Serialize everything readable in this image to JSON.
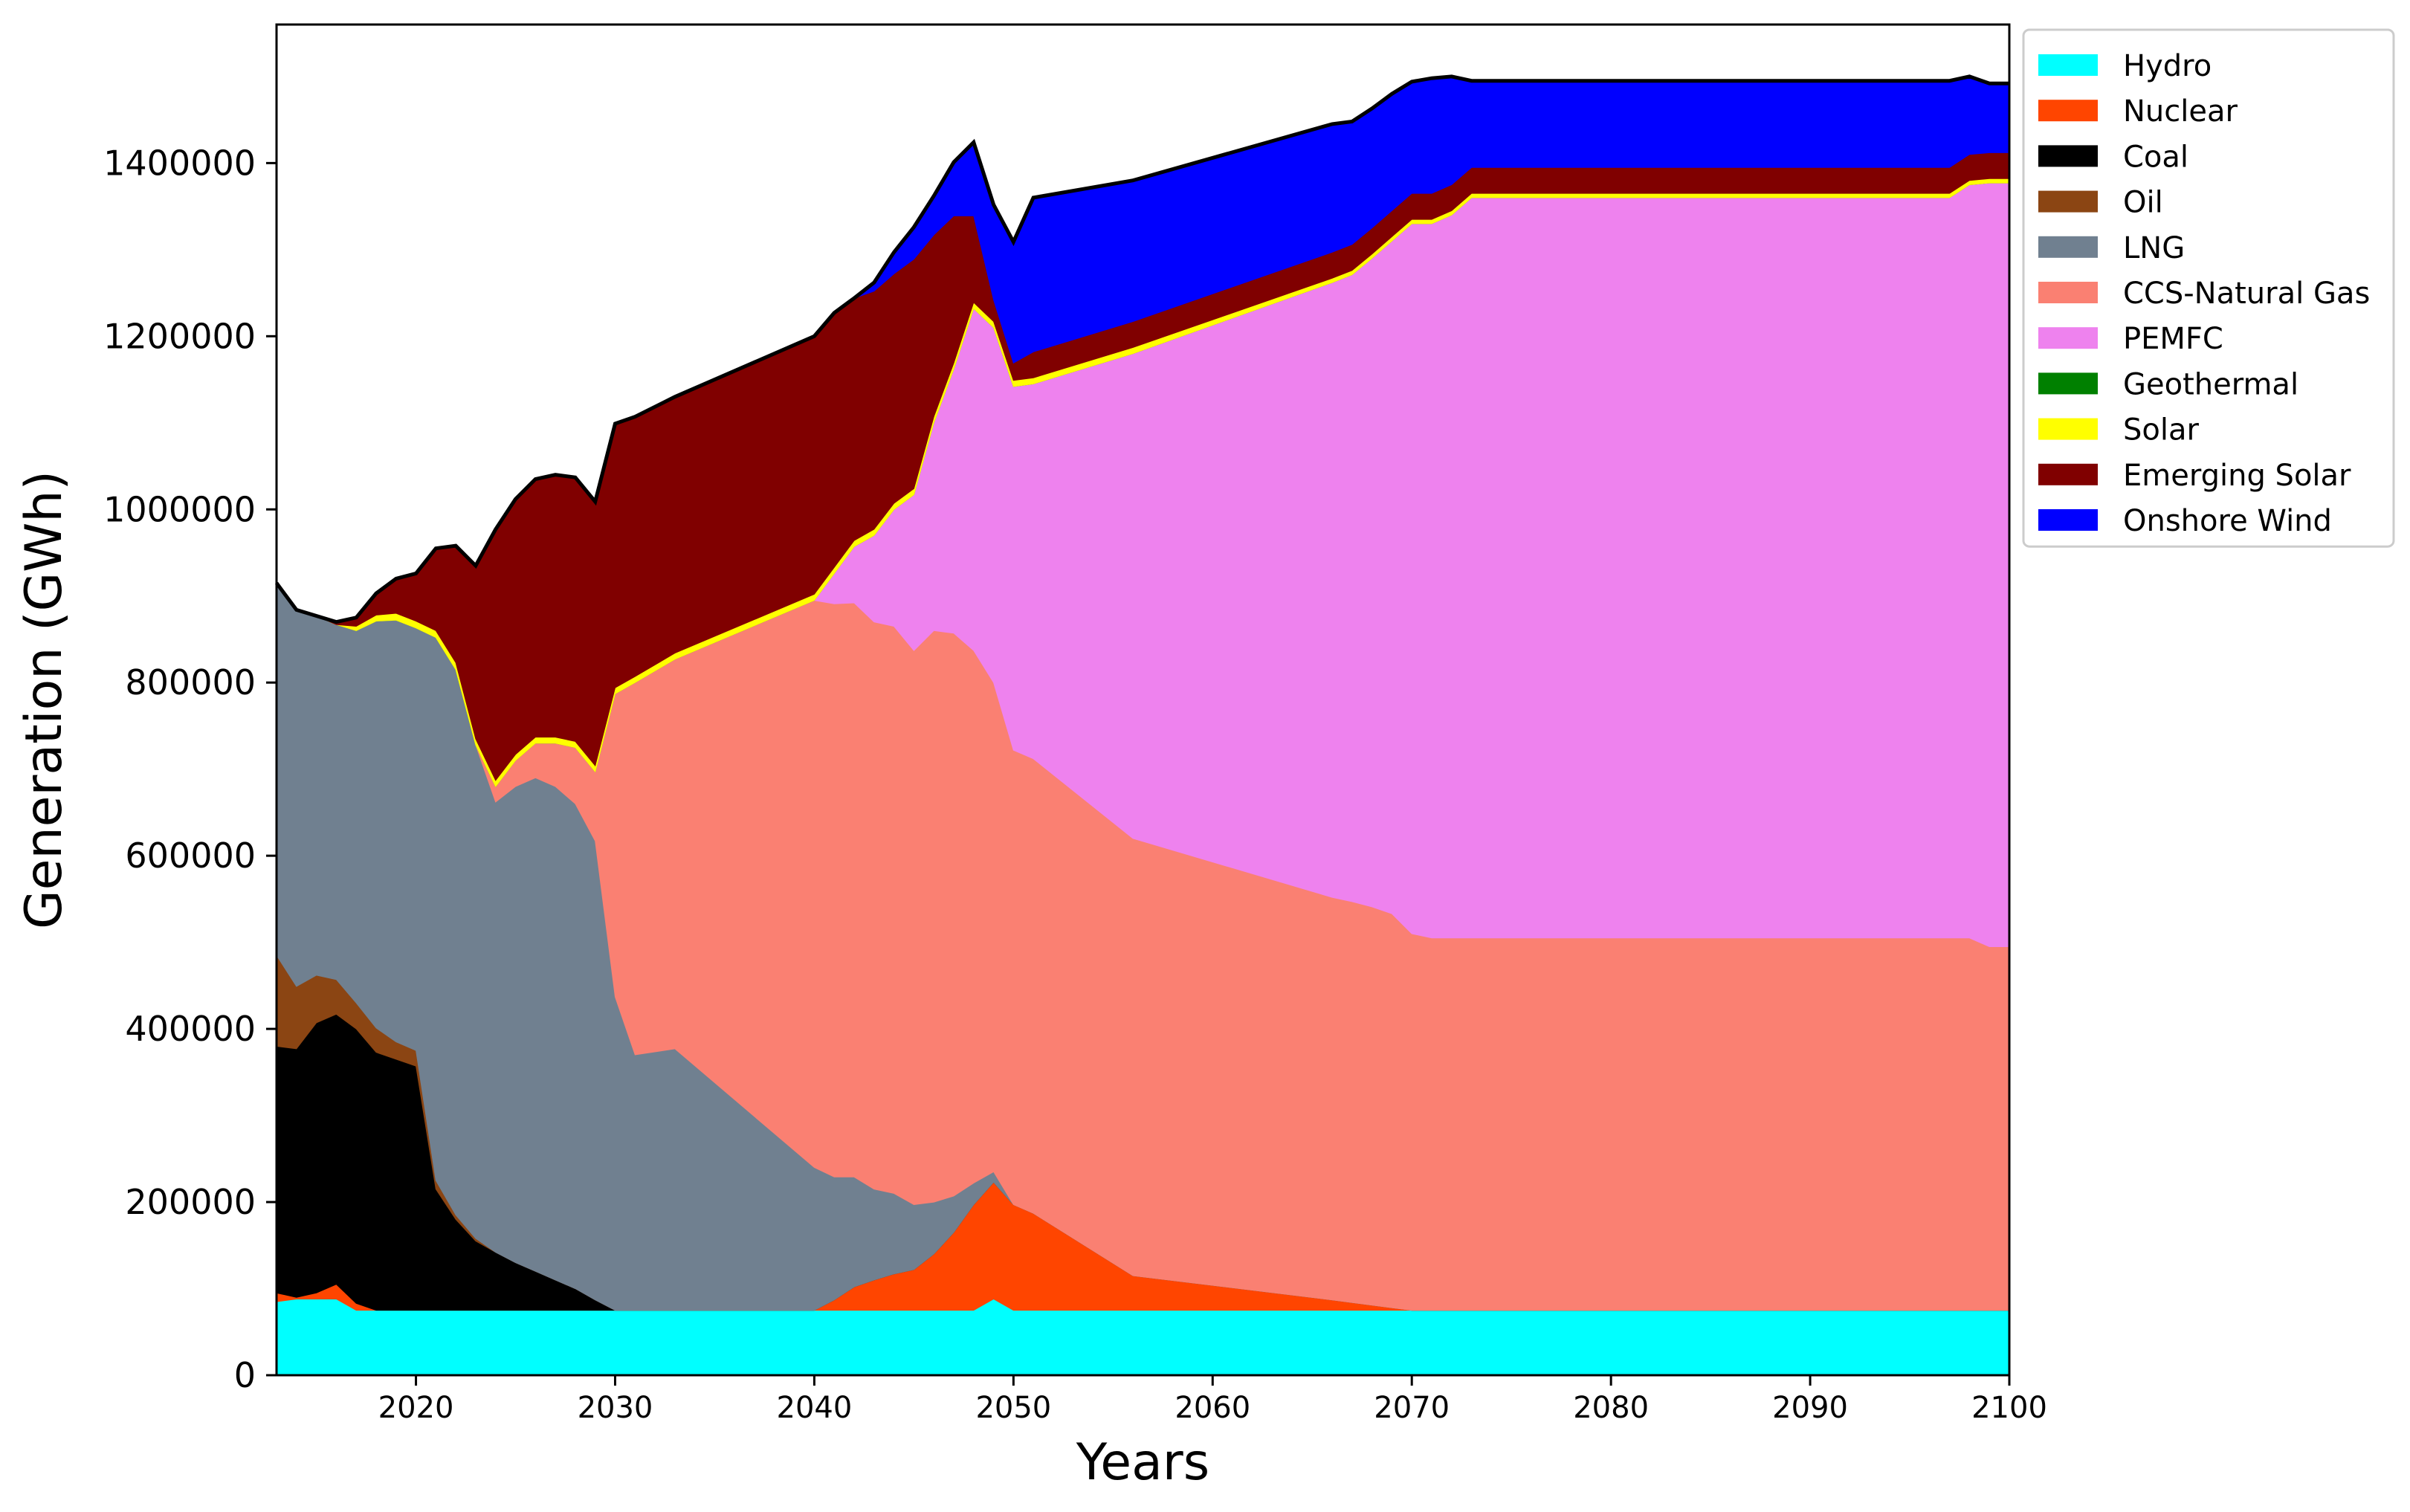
{
  "chart_data": {
    "type": "area",
    "stacked": true,
    "xlabel": "Years",
    "ylabel": "Generation (GWh)",
    "xlim": [
      2013,
      2100
    ],
    "ylim": [
      0,
      1560000
    ],
    "x_ticks": [
      2020,
      2030,
      2040,
      2050,
      2060,
      2070,
      2080,
      2090,
      2100
    ],
    "y_ticks": [
      0,
      200000,
      400000,
      600000,
      800000,
      1000000,
      1200000,
      1400000
    ],
    "grid": false,
    "legend_position": "outside-right-top",
    "x": [
      2013,
      2014,
      2015,
      2016,
      2017,
      2018,
      2019,
      2020,
      2021,
      2022,
      2023,
      2024,
      2025,
      2026,
      2027,
      2028,
      2029,
      2030,
      2031,
      2033,
      2040,
      2041,
      2042,
      2043,
      2044,
      2045,
      2046,
      2047,
      2048,
      2049,
      2050,
      2051,
      2056,
      2066,
      2067,
      2068,
      2069,
      2070,
      2071,
      2072,
      2073,
      2097,
      2098,
      2099,
      2100
    ],
    "series": [
      {
        "name": "Hydro",
        "color": "#00ffff",
        "values": [
          85000,
          88000,
          88000,
          88000,
          75000,
          75000,
          75000,
          75000,
          75000,
          75000,
          75000,
          75000,
          75000,
          75000,
          75000,
          75000,
          75000,
          75000,
          75000,
          75000,
          75000,
          75000,
          75000,
          75000,
          75000,
          75000,
          75000,
          75000,
          75000,
          88000,
          75000,
          75000,
          75000,
          75000,
          75000,
          75000,
          75000,
          75000,
          75000,
          75000,
          75000,
          75000,
          75000,
          75000,
          75000
        ]
      },
      {
        "name": "Nuclear",
        "color": "#ff4500",
        "values": [
          10000,
          2000,
          7000,
          17000,
          8000,
          0,
          0,
          0,
          0,
          0,
          0,
          0,
          0,
          0,
          0,
          0,
          0,
          0,
          0,
          0,
          0,
          12000,
          27000,
          35000,
          42000,
          47000,
          65000,
          90000,
          122000,
          135000,
          122000,
          112000,
          40000,
          12000,
          9000,
          6000,
          3000,
          0,
          0,
          0,
          0,
          0,
          0,
          0,
          0
        ]
      },
      {
        "name": "Coal",
        "color": "#000000",
        "values": [
          285000,
          287000,
          312000,
          312000,
          317000,
          298000,
          290000,
          282000,
          140000,
          105000,
          80000,
          67000,
          55000,
          45000,
          35000,
          25000,
          12000,
          0,
          0,
          0,
          0,
          0,
          0,
          0,
          0,
          0,
          0,
          0,
          0,
          0,
          0,
          0,
          0,
          0,
          0,
          0,
          0,
          0,
          0,
          0,
          0,
          0,
          0,
          0,
          0
        ]
      },
      {
        "name": "Oil",
        "color": "#8b4513",
        "values": [
          105000,
          72000,
          55000,
          40000,
          30000,
          28000,
          20000,
          18000,
          10000,
          5000,
          3000,
          0,
          0,
          0,
          0,
          0,
          0,
          0,
          0,
          0,
          0,
          0,
          0,
          0,
          0,
          0,
          0,
          0,
          0,
          0,
          0,
          0,
          0,
          0,
          0,
          0,
          0,
          0,
          0,
          0,
          0,
          0,
          0,
          0,
          0
        ]
      },
      {
        "name": "LNG",
        "color": "#708090",
        "values": [
          430000,
          435000,
          415000,
          410000,
          430000,
          470000,
          487000,
          488000,
          627000,
          630000,
          570000,
          520000,
          550000,
          570000,
          570000,
          560000,
          530000,
          362000,
          295000,
          302000,
          165000,
          142000,
          127000,
          105000,
          93000,
          75000,
          60000,
          42000,
          25000,
          12000,
          0,
          0,
          0,
          0,
          0,
          0,
          0,
          0,
          0,
          0,
          0,
          0,
          0,
          0,
          0
        ]
      },
      {
        "name": "CCS-Natural Gas",
        "color": "#fa8072",
        "values": [
          0,
          0,
          0,
          0,
          0,
          0,
          0,
          0,
          0,
          0,
          0,
          18000,
          30000,
          40000,
          50000,
          65000,
          80000,
          350000,
          430000,
          450000,
          655000,
          662000,
          663000,
          655000,
          655000,
          640000,
          660000,
          650000,
          615000,
          565000,
          525000,
          525000,
          505000,
          465000,
          463000,
          460000,
          455000,
          435000,
          430000,
          430000,
          430000,
          430000,
          430000,
          420000,
          420000
        ]
      },
      {
        "name": "PEMFC",
        "color": "#ee82ee",
        "values": [
          0,
          0,
          0,
          0,
          0,
          0,
          0,
          0,
          0,
          0,
          0,
          0,
          0,
          0,
          0,
          0,
          0,
          0,
          0,
          0,
          0,
          35000,
          65000,
          100000,
          135000,
          180000,
          240000,
          305000,
          395000,
          410000,
          420000,
          433000,
          560000,
          710000,
          724000,
          749000,
          777000,
          820000,
          825000,
          835000,
          855000,
          855000,
          870000,
          882000,
          882000
        ]
      },
      {
        "name": "Geothermal",
        "color": "#008000",
        "values": [
          0,
          0,
          0,
          0,
          0,
          0,
          0,
          0,
          0,
          0,
          0,
          0,
          0,
          0,
          0,
          0,
          0,
          0,
          0,
          0,
          0,
          0,
          0,
          0,
          0,
          0,
          0,
          0,
          0,
          0,
          0,
          0,
          0,
          0,
          0,
          0,
          0,
          0,
          0,
          0,
          0,
          0,
          0,
          0,
          0
        ]
      },
      {
        "name": "Solar",
        "color": "#ffff00",
        "values": [
          0,
          0,
          0,
          0,
          5000,
          7000,
          8000,
          8000,
          8000,
          8000,
          7000,
          7000,
          7000,
          7000,
          7000,
          7000,
          7000,
          7000,
          7000,
          7000,
          7000,
          7000,
          7000,
          7000,
          7000,
          7000,
          7000,
          7000,
          7000,
          7000,
          7000,
          7000,
          7000,
          5000,
          5000,
          5000,
          5000,
          5000,
          5000,
          5000,
          5000,
          5000,
          5000,
          5000,
          5000
        ]
      },
      {
        "name": "Emerging Solar",
        "color": "#800000",
        "values": [
          0,
          0,
          0,
          3000,
          10000,
          25000,
          40000,
          55000,
          95000,
          135000,
          200000,
          290000,
          295000,
          298000,
          303000,
          305000,
          305000,
          305000,
          300000,
          296000,
          298000,
          294000,
          280000,
          275000,
          265000,
          265000,
          210000,
          170000,
          100000,
          25000,
          20000,
          30000,
          30000,
          30000,
          30000,
          30000,
          30000,
          30000,
          30000,
          30000,
          30000,
          30000,
          30000,
          30000,
          30000
        ]
      },
      {
        "name": "Onshore Wind",
        "color": "#0000ff",
        "values": [
          0,
          0,
          0,
          0,
          0,
          0,
          0,
          0,
          0,
          0,
          0,
          0,
          0,
          0,
          0,
          0,
          0,
          0,
          0,
          0,
          0,
          0,
          0,
          10000,
          25000,
          37000,
          45000,
          62000,
          85000,
          110000,
          140000,
          178000,
          163000,
          148000,
          142000,
          138000,
          135000,
          129000,
          133000,
          125000,
          100000,
          100000,
          90000,
          80000,
          80000
        ]
      }
    ],
    "total_outline_color": "#000000"
  }
}
